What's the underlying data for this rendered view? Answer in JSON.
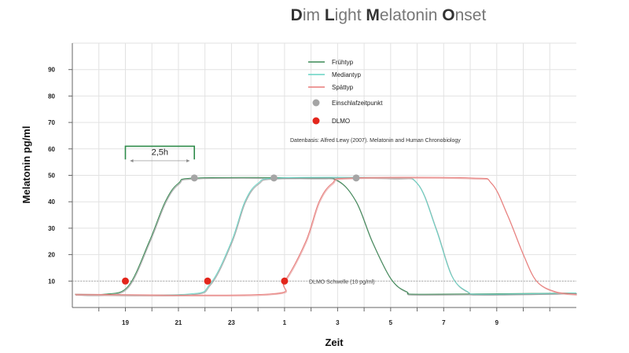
{
  "chart_data": {
    "type": "line",
    "title": "Dim Light Melatonin Onset",
    "title_initials": [
      "D",
      "L",
      "M",
      "O"
    ],
    "xlabel": "Zeit",
    "ylabel": "Melatonin pg/ml",
    "x_tick_labels": [
      "19",
      "21",
      "23",
      "1",
      "3",
      "5",
      "7",
      "9"
    ],
    "x_tick_hours": [
      19,
      21,
      23,
      25,
      27,
      29,
      31,
      33
    ],
    "xlim_hours": [
      17,
      36
    ],
    "y_ticks": [
      10,
      20,
      30,
      40,
      50,
      60,
      70,
      80,
      90
    ],
    "ylim": [
      0,
      100
    ],
    "grid": true,
    "legend_position": "top-center",
    "series": [
      {
        "name": "Frühtyp",
        "color": "#3a8a55",
        "shadow": "#9a9a9a",
        "points": [
          [
            17.1,
            5
          ],
          [
            18.2,
            5
          ],
          [
            19.1,
            8
          ],
          [
            19.9,
            25
          ],
          [
            20.5,
            40
          ],
          [
            21.0,
            47
          ],
          [
            21.7,
            49
          ],
          [
            26.0,
            49
          ],
          [
            27.0,
            48
          ],
          [
            27.7,
            40
          ],
          [
            28.3,
            25
          ],
          [
            29.0,
            11
          ],
          [
            29.6,
            6
          ],
          [
            30.3,
            5
          ],
          [
            36.0,
            5.5
          ]
        ]
      },
      {
        "name": "Mediantyp",
        "color": "#66d3c4",
        "shadow": "#9a9a9a",
        "points": [
          [
            17.1,
            5
          ],
          [
            21.3,
            5
          ],
          [
            22.2,
            9
          ],
          [
            23.0,
            25
          ],
          [
            23.5,
            40
          ],
          [
            24.0,
            47
          ],
          [
            24.8,
            49
          ],
          [
            29.0,
            49
          ],
          [
            30.0,
            47
          ],
          [
            30.7,
            30
          ],
          [
            31.3,
            12
          ],
          [
            31.9,
            6
          ],
          [
            32.5,
            5
          ],
          [
            36.0,
            5.5
          ]
        ]
      },
      {
        "name": "Spättyp",
        "color": "#e87a78",
        "shadow": "#e8a9a7",
        "points": [
          [
            17.1,
            5
          ],
          [
            24.3,
            5
          ],
          [
            25.0,
            10
          ],
          [
            25.8,
            25
          ],
          [
            26.3,
            40
          ],
          [
            26.8,
            47
          ],
          [
            27.5,
            49
          ],
          [
            32.0,
            49
          ],
          [
            32.8,
            47
          ],
          [
            33.4,
            35
          ],
          [
            34.0,
            20
          ],
          [
            34.5,
            10
          ],
          [
            35.2,
            6
          ],
          [
            36.0,
            5
          ]
        ]
      }
    ],
    "sleep_onset_points": [
      [
        21.6,
        49
      ],
      [
        24.6,
        49
      ],
      [
        27.7,
        49
      ]
    ],
    "dlmo_points": [
      [
        19.0,
        10
      ],
      [
        22.1,
        10
      ],
      [
        25.0,
        10
      ]
    ],
    "threshold": {
      "value": 10,
      "label": "DLMO Schwelle (10 pg/ml)"
    },
    "bracket": {
      "from_hour": 19.0,
      "to_hour": 21.6,
      "label": "2,5h"
    },
    "legend": [
      {
        "label": "Frühtyp",
        "marker": "line",
        "color": "#3a8a55"
      },
      {
        "label": "Mediantyp",
        "marker": "line",
        "color": "#66d3c4"
      },
      {
        "label": "Spättyp",
        "marker": "line",
        "color": "#e87a78"
      },
      {
        "label": "Einschlafzeitpunkt",
        "marker": "dot",
        "color": "#a5a5a5"
      },
      {
        "label": "DLMO",
        "marker": "dot",
        "color": "#e3261c"
      }
    ],
    "annotation": "Datenbasis: Alfred Lewy (2007). Melatonin and Human Chronobiology",
    "dlmo_color": "#e3261c",
    "sleep_onset_color": "#a5a5a5",
    "threshold_color": "#999999",
    "grid_color": "#e2e2e2"
  }
}
